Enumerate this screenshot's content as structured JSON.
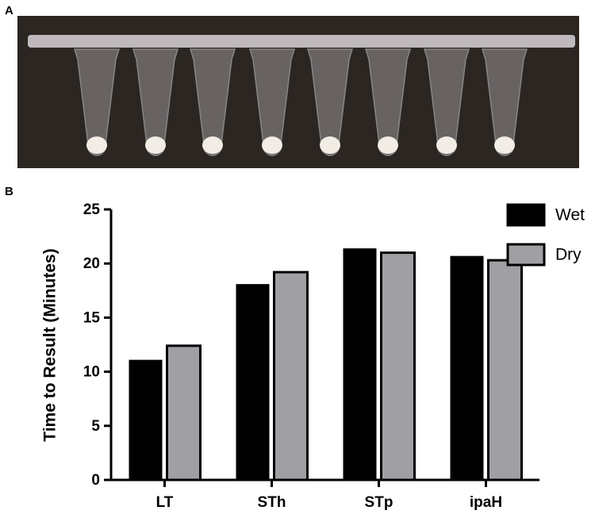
{
  "panel_labels": [
    "A",
    "B"
  ],
  "chart_data": {
    "type": "bar",
    "ylabel": "Time to Result (Minutes)",
    "categories": [
      "LT",
      "STh",
      "STp",
      "ipaH"
    ],
    "series": [
      {
        "name": "Wet",
        "color": "#000000",
        "values": [
          11.1,
          18.1,
          21.4,
          20.7
        ]
      },
      {
        "name": "Dry",
        "color": "#a0a0a4",
        "values": [
          12.4,
          19.2,
          21.0,
          20.3
        ]
      }
    ],
    "ylim": [
      0,
      25
    ],
    "yticks": [
      0,
      5,
      10,
      15,
      20,
      25
    ],
    "legend": "upper right"
  }
}
